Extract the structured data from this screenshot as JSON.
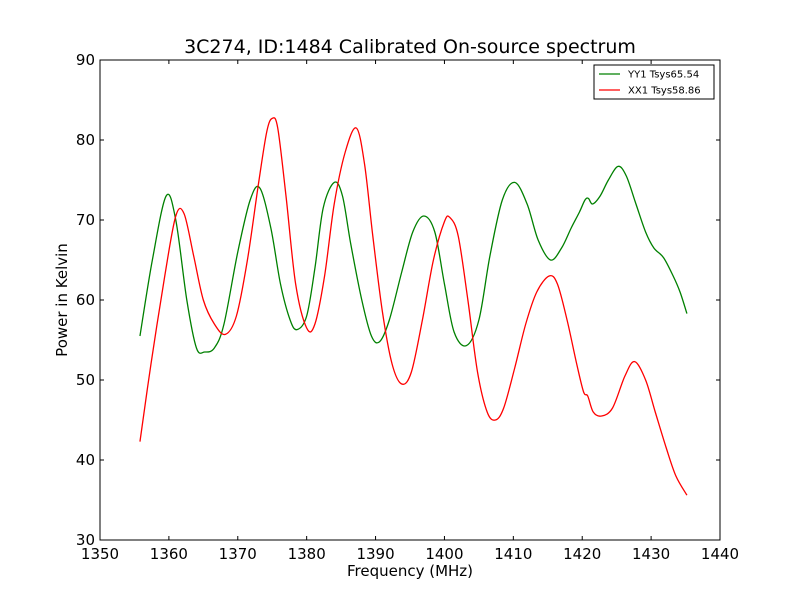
{
  "chart_data": {
    "type": "line",
    "title": "3C274, ID:1484 Calibrated On-source spectrum",
    "xlabel": "Frequency (MHz)",
    "ylabel": "Power in Kelvin",
    "xlim": [
      1350,
      1440
    ],
    "ylim": [
      30,
      90
    ],
    "xticks": [
      1350,
      1360,
      1370,
      1380,
      1390,
      1400,
      1410,
      1420,
      1430,
      1440
    ],
    "yticks": [
      30,
      40,
      50,
      60,
      70,
      80,
      90
    ],
    "legend_position": "top-right",
    "series": [
      {
        "name": "YY1 Tsys65.54",
        "color": "#008000",
        "x": [
          1355.8,
          1357.6,
          1359.6,
          1361,
          1362.6,
          1364,
          1365.2,
          1366.6,
          1368,
          1370,
          1371.8,
          1373.2,
          1374.8,
          1376.2,
          1377.6,
          1378.6,
          1380,
          1381.2,
          1382.4,
          1384,
          1385.2,
          1386.4,
          1388,
          1389.4,
          1390.6,
          1392,
          1393.8,
          1395.4,
          1397,
          1398.6,
          1400,
          1401.4,
          1403.2,
          1405,
          1406.6,
          1408.4,
          1410.2,
          1412,
          1413.6,
          1415.4,
          1417,
          1418.4,
          1419.6,
          1420.4,
          1420.9,
          1421.5,
          1422.6,
          1423.8,
          1425.2,
          1426.4,
          1427.8,
          1429.2,
          1430.4,
          1431.8,
          1433.2,
          1434.2,
          1435.2
        ],
        "y": [
          55.5,
          65,
          73,
          70,
          60,
          54,
          53.5,
          54,
          57,
          66,
          72.5,
          74,
          69,
          62,
          57.5,
          56.3,
          58,
          64,
          71.5,
          74.7,
          73,
          67,
          60,
          55.5,
          54.8,
          57.5,
          63.5,
          68.5,
          70.5,
          68.5,
          62,
          56,
          54.3,
          57.5,
          65.5,
          72.5,
          74.7,
          72,
          67.5,
          65,
          66.5,
          69,
          71,
          72.5,
          72.7,
          72,
          73,
          75,
          76.7,
          75.5,
          72,
          68.5,
          66.5,
          65.3,
          63,
          61,
          58.3
        ]
      },
      {
        "name": "XX1 Tsys58.86",
        "color": "#ff0000",
        "x": [
          1355.8,
          1357.4,
          1359.4,
          1361,
          1362.2,
          1363.6,
          1365,
          1366.6,
          1368.2,
          1369.8,
          1371.4,
          1373,
          1374.2,
          1375,
          1375.8,
          1377,
          1378.4,
          1380,
          1381.2,
          1382.6,
          1384,
          1385.6,
          1387.2,
          1388.4,
          1389.6,
          1391,
          1392.4,
          1393.8,
          1395.2,
          1396.8,
          1398.4,
          1400,
          1400.8,
          1402,
          1403.4,
          1404.8,
          1406.2,
          1407.4,
          1408.6,
          1410.2,
          1411.8,
          1413.4,
          1415.2,
          1416.4,
          1417.8,
          1419.2,
          1420.2,
          1420.8,
          1421.6,
          1422.8,
          1424.4,
          1426.2,
          1427.6,
          1429.2,
          1430.6,
          1432.2,
          1433.6,
          1435.2
        ],
        "y": [
          42.3,
          52,
          63,
          70.5,
          70.8,
          65.5,
          60,
          57,
          55.7,
          58,
          65,
          74.5,
          81,
          82.7,
          81.5,
          73,
          62,
          56.5,
          57,
          63,
          72,
          78.5,
          81.5,
          77,
          68,
          58.5,
          52,
          49.5,
          51,
          57.5,
          65,
          69.8,
          70.3,
          68,
          60,
          51,
          46,
          45,
          46.5,
          51.5,
          57,
          61,
          63,
          62,
          57.5,
          52,
          48.5,
          48,
          46,
          45.5,
          46.5,
          50.5,
          52.3,
          50,
          46,
          41.5,
          38,
          35.6
        ]
      }
    ]
  }
}
